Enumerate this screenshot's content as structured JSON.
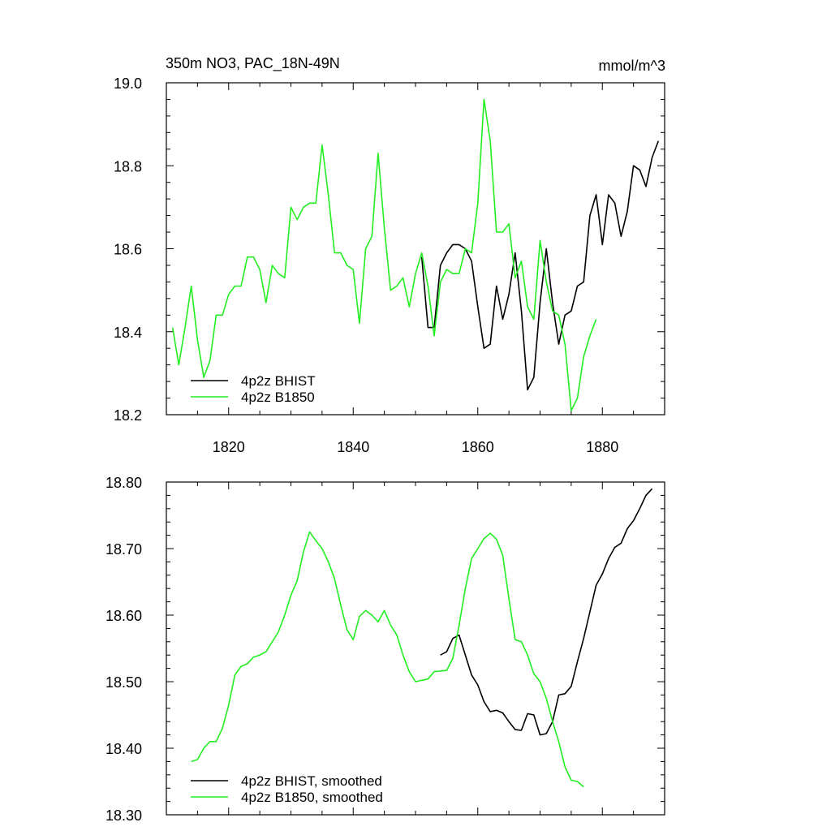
{
  "chart_data": [
    {
      "type": "line",
      "title": "350m NO3, PAC_18N-49N",
      "units": "mmol/m^3",
      "xlim": [
        1810,
        1890
      ],
      "ylim": [
        18.2,
        19.0
      ],
      "xticks": [
        1820,
        1840,
        1860,
        1880
      ],
      "xtick_labels": [
        "1820",
        "1840",
        "1860",
        "1880"
      ],
      "yticks": [
        18.2,
        18.4,
        18.6,
        18.8,
        19.0
      ],
      "ytick_labels": [
        "18.2",
        "18.4",
        "18.6",
        "18.8",
        "19.0"
      ],
      "grid": false,
      "legend_position": "bottom-left",
      "series": [
        {
          "name": "4p2z BHIST",
          "color": "#000000",
          "x": [
            1851,
            1852,
            1853,
            1854,
            1855,
            1856,
            1857,
            1858,
            1859,
            1860,
            1861,
            1862,
            1863,
            1864,
            1865,
            1866,
            1867,
            1868,
            1869,
            1870,
            1871,
            1872,
            1873,
            1874,
            1875,
            1876,
            1877,
            1878,
            1879,
            1880,
            1881,
            1882,
            1883,
            1884,
            1885,
            1886,
            1887,
            1888,
            1889
          ],
          "y": [
            18.58,
            18.41,
            18.41,
            18.56,
            18.59,
            18.61,
            18.61,
            18.6,
            18.57,
            18.46,
            18.36,
            18.37,
            18.51,
            18.43,
            18.49,
            18.59,
            18.45,
            18.26,
            18.29,
            18.47,
            18.6,
            18.47,
            18.37,
            18.44,
            18.45,
            18.51,
            18.52,
            18.68,
            18.73,
            18.61,
            18.73,
            18.71,
            18.63,
            18.69,
            18.8,
            18.79,
            18.75,
            18.82,
            18.86
          ]
        },
        {
          "name": "4p2z B1850",
          "color": "#22ee22",
          "x": [
            1811,
            1812,
            1813,
            1814,
            1815,
            1816,
            1817,
            1818,
            1819,
            1820,
            1821,
            1822,
            1823,
            1824,
            1825,
            1826,
            1827,
            1828,
            1829,
            1830,
            1831,
            1832,
            1833,
            1834,
            1835,
            1836,
            1837,
            1838,
            1839,
            1840,
            1841,
            1842,
            1843,
            1844,
            1845,
            1846,
            1847,
            1848,
            1849,
            1850,
            1851,
            1852,
            1853,
            1854,
            1855,
            1856,
            1857,
            1858,
            1859,
            1860,
            1861,
            1862,
            1863,
            1864,
            1865,
            1866,
            1867,
            1868,
            1869,
            1870,
            1871,
            1872,
            1873,
            1874,
            1875,
            1876,
            1877,
            1878,
            1879
          ],
          "y": [
            18.41,
            18.32,
            18.41,
            18.51,
            18.38,
            18.29,
            18.33,
            18.44,
            18.44,
            18.49,
            18.51,
            18.51,
            18.58,
            18.58,
            18.55,
            18.47,
            18.56,
            18.54,
            18.53,
            18.7,
            18.67,
            18.7,
            18.71,
            18.71,
            18.85,
            18.73,
            18.59,
            18.59,
            18.56,
            18.55,
            18.42,
            18.6,
            18.63,
            18.83,
            18.65,
            18.5,
            18.51,
            18.53,
            18.46,
            18.54,
            18.59,
            18.51,
            18.39,
            18.52,
            18.55,
            18.54,
            18.54,
            18.6,
            18.59,
            18.71,
            18.96,
            18.86,
            18.64,
            18.64,
            18.66,
            18.53,
            18.57,
            18.46,
            18.43,
            18.62,
            18.52,
            18.45,
            18.44,
            18.37,
            18.21,
            18.24,
            18.34,
            18.39,
            18.43
          ]
        }
      ]
    },
    {
      "type": "line",
      "xlim": [
        1810,
        1890
      ],
      "ylim": [
        18.3,
        18.8
      ],
      "xticks": [
        1820,
        1840,
        1860,
        1880
      ],
      "yticks": [
        18.3,
        18.4,
        18.5,
        18.6,
        18.7,
        18.8
      ],
      "ytick_labels": [
        "18.30",
        "18.40",
        "18.50",
        "18.60",
        "18.70",
        "18.80"
      ],
      "grid": false,
      "legend_position": "bottom-left",
      "series": [
        {
          "name": "4p2z BHIST, smoothed",
          "color": "#000000",
          "x": [
            1854,
            1855,
            1856,
            1857,
            1858,
            1859,
            1860,
            1861,
            1862,
            1863,
            1864,
            1865,
            1866,
            1867,
            1868,
            1869,
            1870,
            1871,
            1872,
            1873,
            1874,
            1875,
            1876,
            1877,
            1878,
            1879,
            1880,
            1881,
            1882,
            1883,
            1884,
            1885,
            1886,
            1887,
            1888
          ],
          "y": [
            18.54,
            18.545,
            18.565,
            18.57,
            18.54,
            18.51,
            18.495,
            18.47,
            18.455,
            18.457,
            18.453,
            18.44,
            18.428,
            18.427,
            18.452,
            18.45,
            18.42,
            18.422,
            18.44,
            18.48,
            18.482,
            18.493,
            18.53,
            18.565,
            18.605,
            18.645,
            18.662,
            18.685,
            18.702,
            18.708,
            18.73,
            18.742,
            18.76,
            18.78,
            18.79
          ]
        },
        {
          "name": "4p2z B1850, smoothed",
          "color": "#22ee22",
          "x": [
            1814,
            1815,
            1816,
            1817,
            1818,
            1819,
            1820,
            1821,
            1822,
            1823,
            1824,
            1825,
            1826,
            1827,
            1828,
            1829,
            1830,
            1831,
            1832,
            1833,
            1834,
            1835,
            1836,
            1837,
            1838,
            1839,
            1840,
            1841,
            1842,
            1843,
            1844,
            1845,
            1846,
            1847,
            1848,
            1849,
            1850,
            1851,
            1852,
            1853,
            1854,
            1855,
            1856,
            1857,
            1858,
            1859,
            1860,
            1861,
            1862,
            1863,
            1864,
            1865,
            1866,
            1867,
            1868,
            1869,
            1870,
            1871,
            1872,
            1873,
            1874,
            1875,
            1876,
            1877
          ],
          "y": [
            18.38,
            18.383,
            18.4,
            18.41,
            18.41,
            18.43,
            18.465,
            18.51,
            18.523,
            18.527,
            18.537,
            18.54,
            18.545,
            18.56,
            18.575,
            18.6,
            18.63,
            18.652,
            18.695,
            18.725,
            18.712,
            18.7,
            18.68,
            18.655,
            18.615,
            18.578,
            18.563,
            18.598,
            18.607,
            18.6,
            18.59,
            18.607,
            18.585,
            18.57,
            18.54,
            18.515,
            18.5,
            18.502,
            18.504,
            18.515,
            18.516,
            18.517,
            18.535,
            18.585,
            18.64,
            18.685,
            18.7,
            18.715,
            18.723,
            18.714,
            18.69,
            18.625,
            18.563,
            18.56,
            18.54,
            18.512,
            18.5,
            18.475,
            18.44,
            18.41,
            18.372,
            18.352,
            18.35,
            18.342
          ]
        }
      ]
    }
  ]
}
